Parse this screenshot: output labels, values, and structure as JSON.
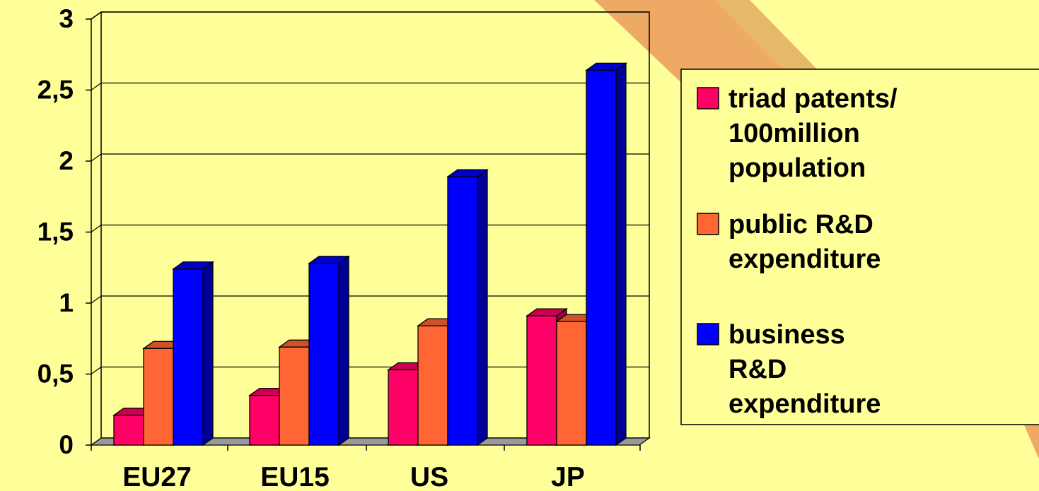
{
  "chart_data": {
    "type": "bar",
    "categories": [
      "EU27",
      "EU15",
      "US",
      "JP"
    ],
    "series": [
      {
        "name": "triad patents/ 100million population",
        "values": [
          0.21,
          0.35,
          0.53,
          0.91
        ]
      },
      {
        "name": "public R&D expenditure",
        "values": [
          0.68,
          0.69,
          0.84,
          0.87
        ]
      },
      {
        "name": "business R&D expenditure",
        "values": [
          1.24,
          1.28,
          1.89,
          2.64
        ]
      }
    ],
    "y_ticks": [
      "0",
      "0,5",
      "1",
      "1,5",
      "2",
      "2,5",
      "3"
    ],
    "ylim": [
      0,
      3
    ],
    "grid": true,
    "legend_position": "right",
    "legend_lines": [
      [
        "triad patents/",
        "100million",
        "population"
      ],
      [
        "public R&D",
        "expenditure"
      ],
      [
        "business",
        "R&D",
        "expenditure"
      ]
    ],
    "colors": {
      "background": "#ffff99",
      "series": [
        "#ff0066",
        "#ff6633",
        "#0000ff"
      ],
      "series_side": [
        "#99003d",
        "#a8421f",
        "#000099"
      ],
      "series_top": [
        "#cc0052",
        "#cc5229",
        "#0000cc"
      ],
      "floor": "#999999",
      "decoration": "#e8a060"
    }
  }
}
